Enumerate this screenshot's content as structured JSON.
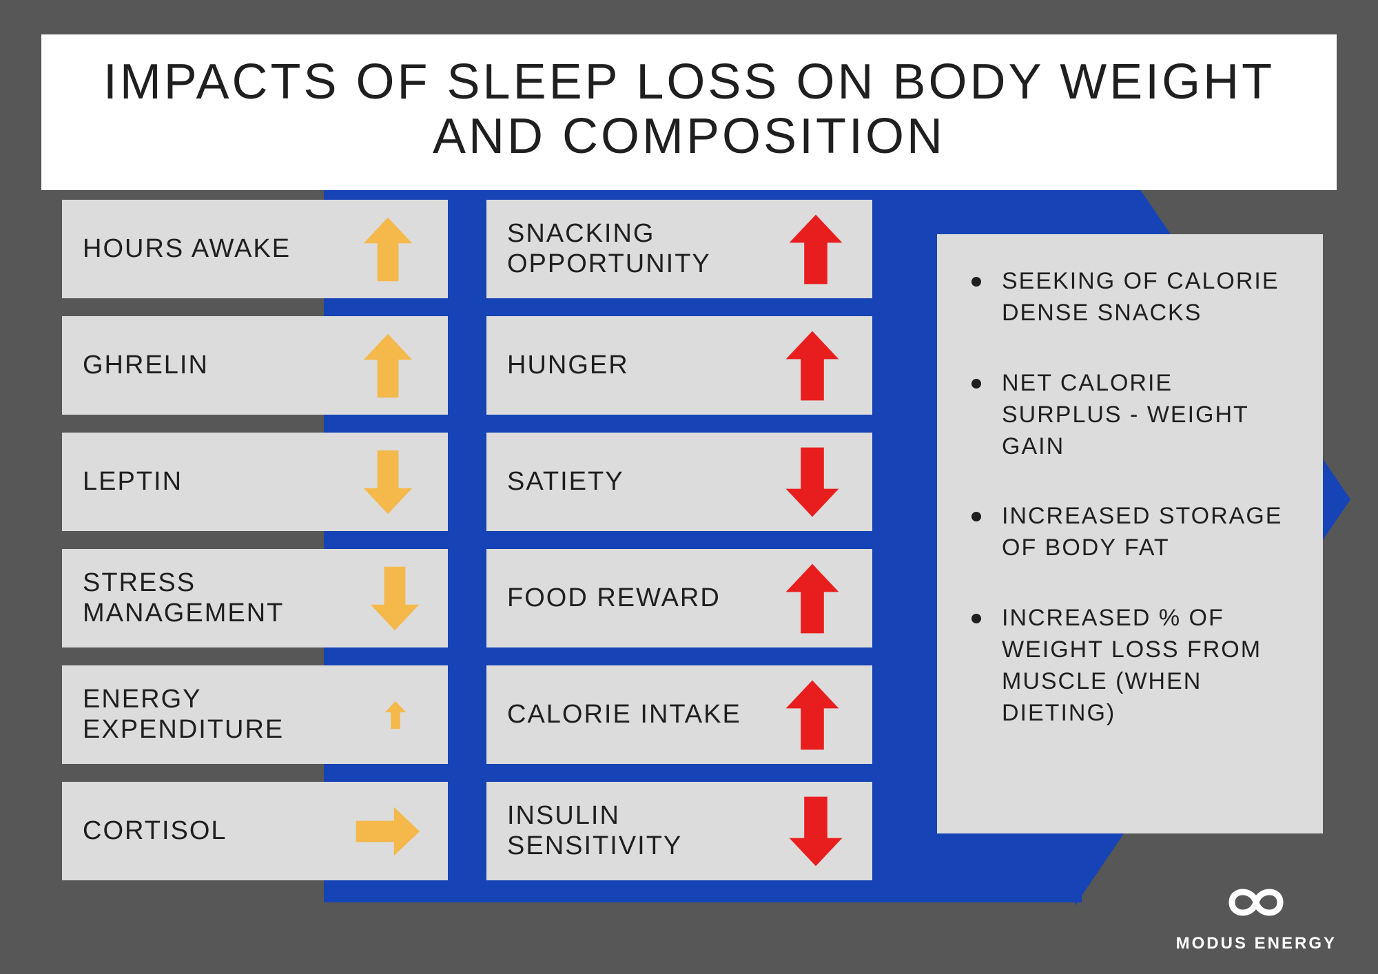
{
  "title": "IMPACTS OF SLEEP LOSS ON BODY WEIGHT AND COMPOSITION",
  "colors": {
    "background": "#575757",
    "accent_blue": "#1643b5",
    "cell_bg": "#dcdcdc",
    "title_bg": "#ffffff",
    "text": "#1f1f1f",
    "arrow_yellow": "#f4b84b",
    "arrow_red": "#e81e1e",
    "logo": "#ffffff"
  },
  "typography": {
    "title_fontsize": 72,
    "cell_label_fontsize": 38,
    "bullet_fontsize": 34,
    "logo_fontsize": 24
  },
  "left_column": [
    {
      "label": "HOURS AWAKE",
      "direction": "up",
      "color": "#f4b84b",
      "size": 110
    },
    {
      "label": "GHRELIN",
      "direction": "up",
      "color": "#f4b84b",
      "size": 110
    },
    {
      "label": "LEPTIN",
      "direction": "down",
      "color": "#f4b84b",
      "size": 110
    },
    {
      "label": "STRESS MANAGEMENT",
      "direction": "down",
      "color": "#f4b84b",
      "size": 110
    },
    {
      "label": "ENERGY EXPENDITURE",
      "direction": "up",
      "color": "#f4b84b",
      "size": 48
    },
    {
      "label": "CORTISOL",
      "direction": "right",
      "color": "#f4b84b",
      "size": 110
    }
  ],
  "right_column": [
    {
      "label": "SNACKING OPPORTUNITY",
      "direction": "up",
      "color": "#e81e1e",
      "size": 120
    },
    {
      "label": "HUNGER",
      "direction": "up",
      "color": "#e81e1e",
      "size": 120
    },
    {
      "label": "SATIETY",
      "direction": "down",
      "color": "#e81e1e",
      "size": 120
    },
    {
      "label": "FOOD REWARD",
      "direction": "up",
      "color": "#e81e1e",
      "size": 120
    },
    {
      "label": "CALORIE INTAKE",
      "direction": "up",
      "color": "#e81e1e",
      "size": 120
    },
    {
      "label": "INSULIN SENSITIVITY",
      "direction": "down",
      "color": "#e81e1e",
      "size": 120
    }
  ],
  "bullets": [
    "SEEKING OF CALORIE DENSE SNACKS",
    "NET CALORIE SURPLUS - WEIGHT GAIN",
    "INCREASED STORAGE OF BODY FAT",
    "INCREASED % OF WEIGHT LOSS FROM MUSCLE (WHEN DIETING)"
  ],
  "logo_text": "MODUS ENERGY"
}
